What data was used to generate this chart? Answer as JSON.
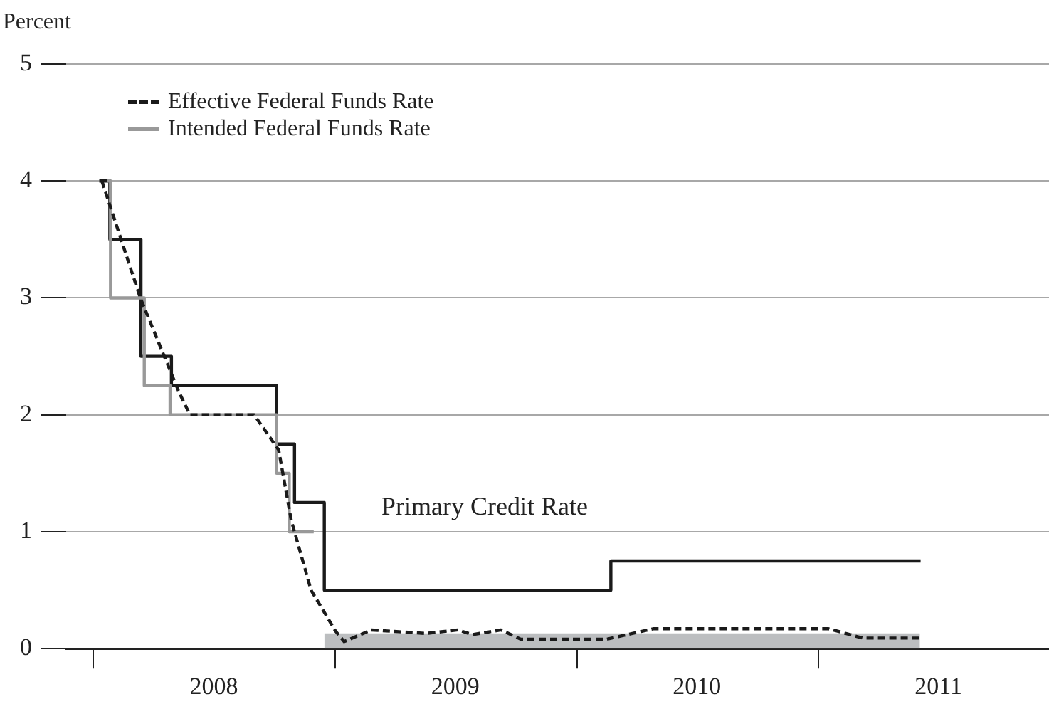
{
  "chart_data": {
    "type": "line",
    "ylabel": "Percent",
    "xlim": [
      "2007-11-21",
      "2011-12-15"
    ],
    "xticks": [
      {
        "value": "2008-01-01",
        "label": null
      },
      {
        "value": "2008-07-01",
        "label": "2008"
      },
      {
        "value": "2009-01-01",
        "label": null
      },
      {
        "value": "2009-07-01",
        "label": "2009"
      },
      {
        "value": "2010-01-01",
        "label": null
      },
      {
        "value": "2010-07-01",
        "label": "2010"
      },
      {
        "value": "2011-01-01",
        "label": null
      },
      {
        "value": "2011-07-01",
        "label": "2011"
      }
    ],
    "ylim": [
      0,
      5
    ],
    "yticks": [
      0,
      1,
      2,
      3,
      4,
      5
    ],
    "grid": "y",
    "legend": "top left",
    "marker": "none",
    "annotations": [
      "Primary Credit Rate"
    ],
    "series": [
      {
        "name": "Effective Federal Funds Rate",
        "type": "line",
        "line_style": "dashed",
        "color": "#1a1a1a",
        "x": [
          "2008-01-14",
          "2008-03-12",
          "2008-05-09",
          "2008-05-26",
          "2008-08-31",
          "2008-10-07",
          "2008-10-26",
          "2008-11-25",
          "2009-01-01",
          "2009-01-14",
          "2009-02-24",
          "2009-05-17",
          "2009-07-05",
          "2009-07-27",
          "2009-09-08",
          "2009-10-08",
          "2010-02-14",
          "2010-04-26",
          "2011-01-16",
          "2011-03-09",
          "2011-06-03"
        ],
        "values": [
          4.0,
          3.0,
          2.2,
          2.0,
          2.0,
          1.7,
          1.1,
          0.5,
          0.15,
          0.06,
          0.16,
          0.13,
          0.16,
          0.12,
          0.16,
          0.08,
          0.08,
          0.17,
          0.17,
          0.09,
          0.09
        ]
      },
      {
        "name": "Intended Federal Funds Rate",
        "type": "step",
        "color": "#999999",
        "x": [
          "2008-01-22",
          "2008-01-27",
          "2008-03-18",
          "2008-04-26",
          "2008-10-04",
          "2008-10-23",
          "2008-11-29"
        ],
        "values": [
          4.0,
          3.0,
          2.25,
          2.0,
          1.5,
          1.0,
          1.0
        ]
      },
      {
        "type": "step",
        "color": "#1a1a1a",
        "x": [
          "2008-01-10",
          "2008-01-26",
          "2008-03-13",
          "2008-04-28",
          "2008-10-04",
          "2008-10-31",
          "2008-12-15",
          "2010-02-21",
          "2011-06-04"
        ],
        "values": [
          4.0,
          3.5,
          2.5,
          2.25,
          1.75,
          1.25,
          0.5,
          0.75,
          0.75
        ]
      },
      {
        "type": "area",
        "color": "#bcbec0",
        "x": [
          "2008-12-15",
          "2011-06-03"
        ],
        "values": [
          0.13,
          0.13
        ]
      }
    ]
  }
}
